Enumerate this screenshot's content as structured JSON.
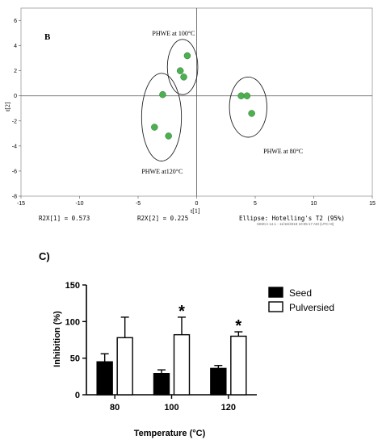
{
  "chart_data": [
    {
      "type": "scatter",
      "panel_label": "B",
      "xlabel": "t[1]",
      "ylabel": "t[2]",
      "xlim": [
        -15,
        15
      ],
      "ylim": [
        -8,
        7
      ],
      "x_ticks": [
        "-15",
        "-10",
        "-5",
        "0",
        "5",
        "10",
        "15"
      ],
      "y_ticks": [
        "6",
        "4",
        "2",
        "0",
        "-2",
        "-4",
        "-6",
        "-8"
      ],
      "point_color": "#4caf50",
      "points": [
        {
          "x": -0.8,
          "y": 3.2
        },
        {
          "x": -1.4,
          "y": 2.0
        },
        {
          "x": -1.1,
          "y": 1.5
        },
        {
          "x": -2.9,
          "y": 0.1
        },
        {
          "x": -3.6,
          "y": -2.5
        },
        {
          "x": -2.4,
          "y": -3.2
        },
        {
          "x": 3.8,
          "y": 0.0
        },
        {
          "x": 4.3,
          "y": 0.0
        },
        {
          "x": 4.7,
          "y": -1.4
        }
      ],
      "groups": [
        {
          "label": "PHWE at 100°C",
          "cx": -1.2,
          "cy": 2.3,
          "rx": 1.3,
          "ry": 2.2,
          "label_x": -3.8,
          "label_y": 4.8
        },
        {
          "label": "PHWE at120°C",
          "cx": -3.0,
          "cy": -1.7,
          "rx": 1.7,
          "ry": 3.5,
          "label_x": -4.7,
          "label_y": -6.2
        },
        {
          "label": "PHWE at 80°C",
          "cx": 4.4,
          "cy": -0.9,
          "rx": 1.6,
          "ry": 2.4,
          "label_x": 5.7,
          "label_y": -4.6
        }
      ],
      "footer": {
        "r2x1": "R2X[1] = 0.573",
        "r2x2": "R2X[2] = 0.225",
        "ellipse": "Ellipse: Hotelling's T2 (95%)",
        "software": "SIMCA 14.1 - 11/16/2018 10:05:17 AM (UTC+8)"
      }
    },
    {
      "type": "bar",
      "panel_label": "C)",
      "xlabel": "Temperature (°C)",
      "ylabel": "Inhibition (%)",
      "ylim": [
        0,
        150
      ],
      "y_ticks": [
        0,
        50,
        100,
        150
      ],
      "categories": [
        "80",
        "100",
        "120"
      ],
      "series": [
        {
          "name": "Seed",
          "fill": "#000000",
          "values": [
            45,
            29,
            36
          ],
          "errors": [
            11,
            5,
            4
          ]
        },
        {
          "name": "Pulversied",
          "fill": "#ffffff",
          "values": [
            78,
            82,
            80
          ],
          "errors": [
            28,
            24,
            6
          ]
        }
      ],
      "significance": [
        {
          "category": "100",
          "series": "Pulversied",
          "mark": "*"
        },
        {
          "category": "120",
          "series": "Pulversied",
          "mark": "*"
        }
      ]
    }
  ]
}
